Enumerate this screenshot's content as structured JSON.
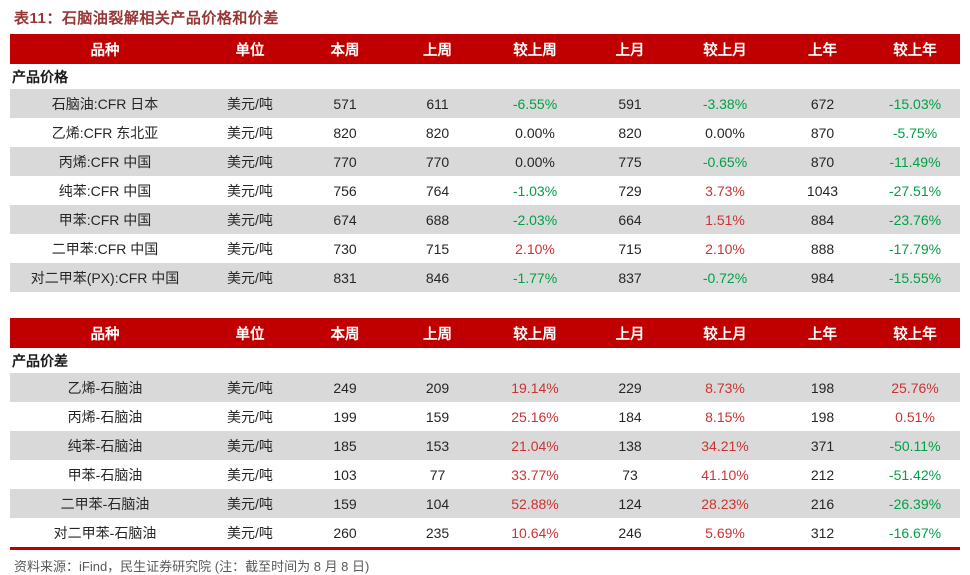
{
  "page": {
    "title": "表11：石脑油裂解相关产品价格和价差",
    "source_note": "资料来源：iFind，民生证券研究院 (注：截至时间为 8 月 8 日)"
  },
  "colors": {
    "header_bg": "#C00000",
    "title_color": "#963735",
    "row_alt": "#D9D9D9",
    "pos_color": "#CC3333",
    "neg_color": "#00A046",
    "text_color": "#262626",
    "footer_color": "#595959",
    "rule_color": "#C00000"
  },
  "tables": [
    {
      "id": "product-prices",
      "section_label": "产品价格",
      "headers": [
        "品种",
        "单位",
        "本周",
        "上周",
        "较上周",
        "上月",
        "较上月",
        "上年",
        "较上年"
      ],
      "rows": [
        [
          "石脑油:CFR 日本",
          "美元/吨",
          "571",
          "611",
          "-6.55%",
          "591",
          "-3.38%",
          "672",
          "-15.03%"
        ],
        [
          "乙烯:CFR 东北亚",
          "美元/吨",
          "820",
          "820",
          "0.00%",
          "820",
          "0.00%",
          "870",
          "-5.75%"
        ],
        [
          "丙烯:CFR 中国",
          "美元/吨",
          "770",
          "770",
          "0.00%",
          "775",
          "-0.65%",
          "870",
          "-11.49%"
        ],
        [
          "纯苯:CFR 中国",
          "美元/吨",
          "756",
          "764",
          "-1.03%",
          "729",
          "3.73%",
          "1043",
          "-27.51%"
        ],
        [
          "甲苯:CFR 中国",
          "美元/吨",
          "674",
          "688",
          "-2.03%",
          "664",
          "1.51%",
          "884",
          "-23.76%"
        ],
        [
          "二甲苯:CFR 中国",
          "美元/吨",
          "730",
          "715",
          "2.10%",
          "715",
          "2.10%",
          "888",
          "-17.79%"
        ],
        [
          "对二甲苯(PX):CFR 中国",
          "美元/吨",
          "831",
          "846",
          "-1.77%",
          "837",
          "-0.72%",
          "984",
          "-15.55%"
        ]
      ]
    },
    {
      "id": "product-spreads",
      "section_label": "产品价差",
      "headers": [
        "品种",
        "单位",
        "本周",
        "上周",
        "较上周",
        "上月",
        "较上月",
        "上年",
        "较上年"
      ],
      "rows": [
        [
          "乙烯-石脑油",
          "美元/吨",
          "249",
          "209",
          "19.14%",
          "229",
          "8.73%",
          "198",
          "25.76%"
        ],
        [
          "丙烯-石脑油",
          "美元/吨",
          "199",
          "159",
          "25.16%",
          "184",
          "8.15%",
          "198",
          "0.51%"
        ],
        [
          "纯苯-石脑油",
          "美元/吨",
          "185",
          "153",
          "21.04%",
          "138",
          "34.21%",
          "371",
          "-50.11%"
        ],
        [
          "甲苯-石脑油",
          "美元/吨",
          "103",
          "77",
          "33.77%",
          "73",
          "41.10%",
          "212",
          "-51.42%"
        ],
        [
          "二甲苯-石脑油",
          "美元/吨",
          "159",
          "104",
          "52.88%",
          "124",
          "28.23%",
          "216",
          "-26.39%"
        ],
        [
          "对二甲苯-石脑油",
          "美元/吨",
          "260",
          "235",
          "10.64%",
          "246",
          "5.69%",
          "312",
          "-16.67%"
        ]
      ]
    }
  ]
}
